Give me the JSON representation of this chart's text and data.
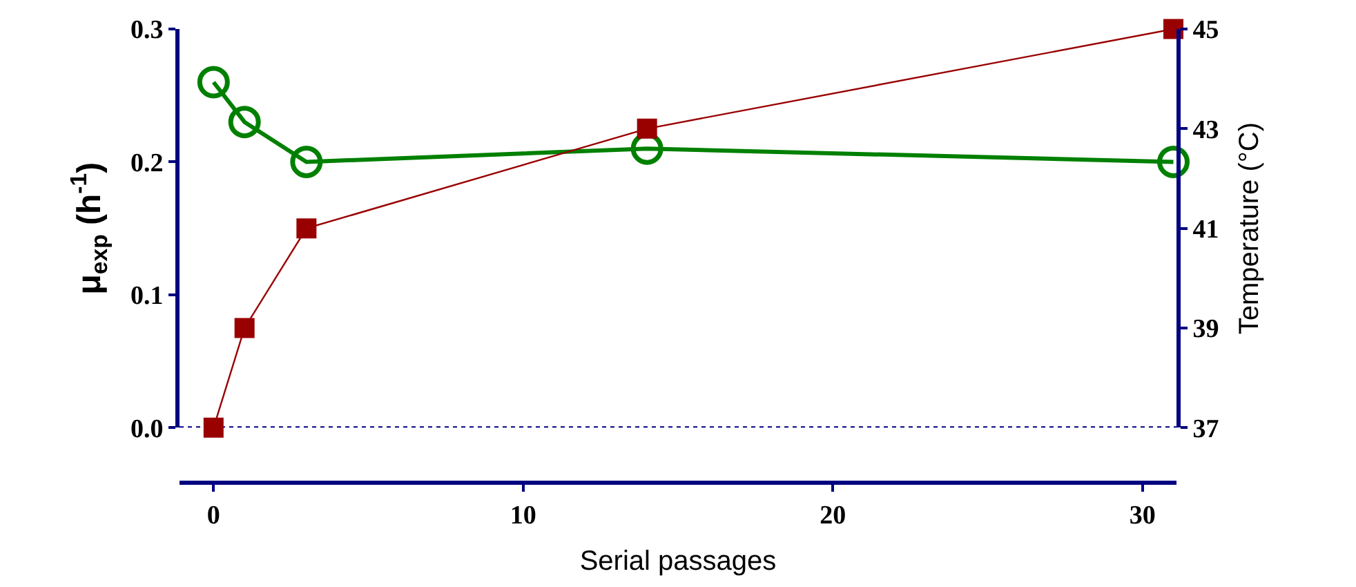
{
  "chart_data": {
    "type": "line",
    "xlabel": "Serial passages",
    "ylabel": "μ$_{exp}$ (h$^{-1}$)",
    "y2label": "Temperature (°C)",
    "series": [
      {
        "x": [
          0,
          1,
          3,
          14,
          31
        ],
        "values": [
          0.26,
          0.23,
          0.2,
          0.21,
          0.2
        ],
        "color": "#008000",
        "marker": "circle"
      },
      {
        "x": [
          0,
          1,
          3,
          14,
          31
        ],
        "values": [
          37,
          39,
          41,
          43,
          45
        ],
        "color": "#990000",
        "marker": "square",
        "axis": "y2"
      }
    ],
    "xlim": [
      -1.1,
      31.1
    ],
    "xticks": [
      0,
      10,
      20,
      30
    ],
    "ylim": [
      0,
      0.3
    ],
    "yticks": [
      {
        "value": 0,
        "label": "0.0"
      },
      0.1,
      0.2,
      0.3
    ],
    "y2lim": [
      37,
      45
    ],
    "y2ticks": [
      37,
      39,
      41,
      43,
      45
    ],
    "ref_lines": [
      {
        "axis": "y",
        "value": 0,
        "color": "#000080",
        "line_style": "dotted"
      }
    ],
    "grid": false,
    "legend": false
  }
}
